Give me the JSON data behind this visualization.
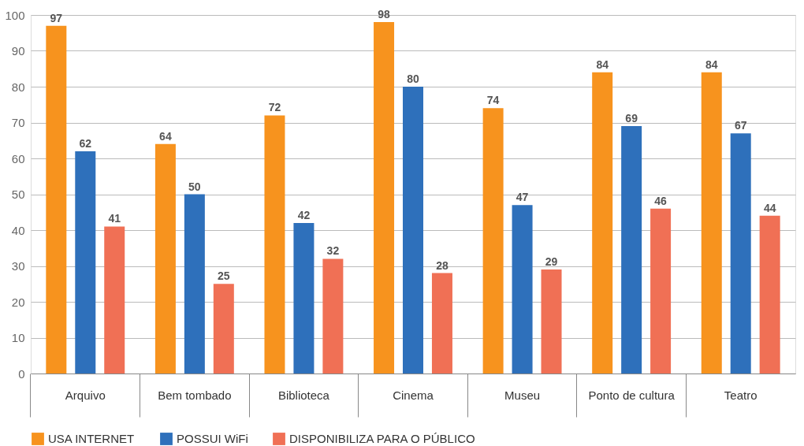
{
  "chart_data": {
    "type": "bar",
    "categories": [
      "Arquivo",
      "Bem tombado",
      "Biblioteca",
      "Cinema",
      "Museu",
      "Ponto de cultura",
      "Teatro"
    ],
    "series": [
      {
        "name": "USA INTERNET",
        "color": "#f7931e",
        "values": [
          97,
          64,
          72,
          98,
          74,
          84,
          84
        ]
      },
      {
        "name": "POSSUI WiFi",
        "color": "#2e70bb",
        "values": [
          62,
          50,
          42,
          80,
          47,
          69,
          67
        ]
      },
      {
        "name": "DISPONIBILIZA PARA O PÚBLICO",
        "color": "#f07055",
        "values": [
          41,
          25,
          32,
          28,
          29,
          46,
          44
        ]
      }
    ],
    "ylim": [
      0,
      100
    ],
    "yticks": [
      0,
      10,
      20,
      30,
      40,
      50,
      60,
      70,
      80,
      90,
      100
    ],
    "grid": "y",
    "legend": "bottom",
    "data_labels": true
  }
}
